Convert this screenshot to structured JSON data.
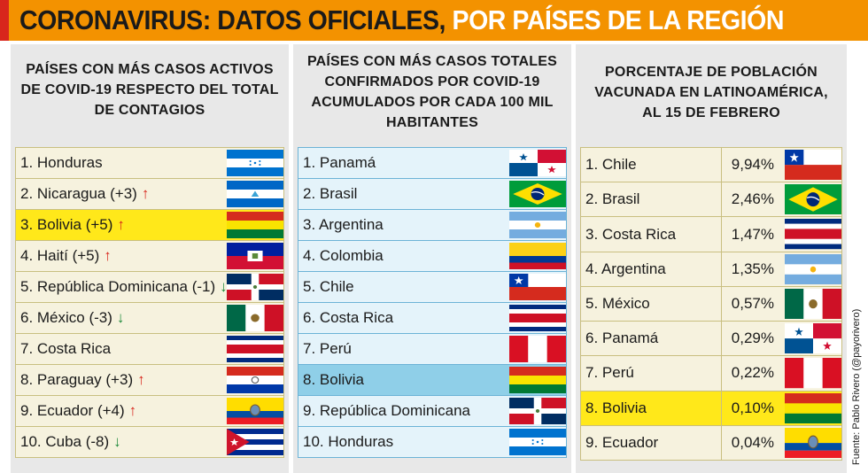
{
  "header": {
    "title_main": "CORONAVIRUS: DATOS OFICIALES,",
    "title_sub": "POR PAÍSES DE LA REGIÓN"
  },
  "panel1": {
    "title": [
      "PAÍSES CON MÁS CASOS ACTIVOS",
      "DE COVID-19 RESPECTO DEL TOTAL",
      "DE CONTAGIOS"
    ],
    "rows": [
      {
        "label": "1. Honduras",
        "arrow": ""
      },
      {
        "label": "2. Nicaragua (+3)",
        "arrow": "↑"
      },
      {
        "label": "3. Bolivia (+5)",
        "arrow": "↑"
      },
      {
        "label": "4. Haití (+5)",
        "arrow": "↑"
      },
      {
        "label": "5. República Dominicana (-1)",
        "arrow": "↓"
      },
      {
        "label": "6. México (-3)",
        "arrow": "↓"
      },
      {
        "label": "7. Costa Rica",
        "arrow": ""
      },
      {
        "label": "8. Paraguay (+3)",
        "arrow": "↑"
      },
      {
        "label": "9. Ecuador (+4)",
        "arrow": "↑"
      },
      {
        "label": "10. Cuba (-8)",
        "arrow": "↓"
      }
    ]
  },
  "panel2": {
    "title": [
      "PAÍSES CON MÁS CASOS TOTALES",
      "CONFIRMADOS POR COVID-19",
      "ACUMULADOS POR CADA 100 MIL",
      "HABITANTES"
    ],
    "rows": [
      {
        "label": "1. Panamá"
      },
      {
        "label": "2. Brasil"
      },
      {
        "label": "3. Argentina"
      },
      {
        "label": "4. Colombia"
      },
      {
        "label": "5. Chile"
      },
      {
        "label": "6. Costa Rica"
      },
      {
        "label": "7. Perú"
      },
      {
        "label": "8. Bolivia"
      },
      {
        "label": "9. República Dominicana"
      },
      {
        "label": "10. Honduras"
      }
    ]
  },
  "panel3": {
    "title": [
      "PORCENTAJE DE POBLACIÓN",
      "VACUNADA EN LATINOAMÉRICA,",
      "AL 15 DE FEBRERO"
    ],
    "rows": [
      {
        "label": "1. Chile",
        "pct": "9,94%"
      },
      {
        "label": "2. Brasil",
        "pct": "2,46%"
      },
      {
        "label": "3. Costa Rica",
        "pct": "1,47%"
      },
      {
        "label": "4. Argentina",
        "pct": "1,35%"
      },
      {
        "label": "5. México",
        "pct": "0,57%"
      },
      {
        "label": "6. Panamá",
        "pct": "0,29%"
      },
      {
        "label": "7. Perú",
        "pct": "0,22%"
      },
      {
        "label": "8. Bolivia",
        "pct": "0,10%"
      },
      {
        "label": "9. Ecuador",
        "pct": "0,04%"
      }
    ]
  },
  "source": "Fuente: Pablo Rivero (@payorivero)",
  "colors": {
    "orange": "#f39200",
    "red": "#d8261c",
    "highlight_yellow": "#ffe81a",
    "highlight_blue": "#8fcfe8",
    "arrow_up": "#d8261c",
    "arrow_down": "#1e8a3a"
  }
}
